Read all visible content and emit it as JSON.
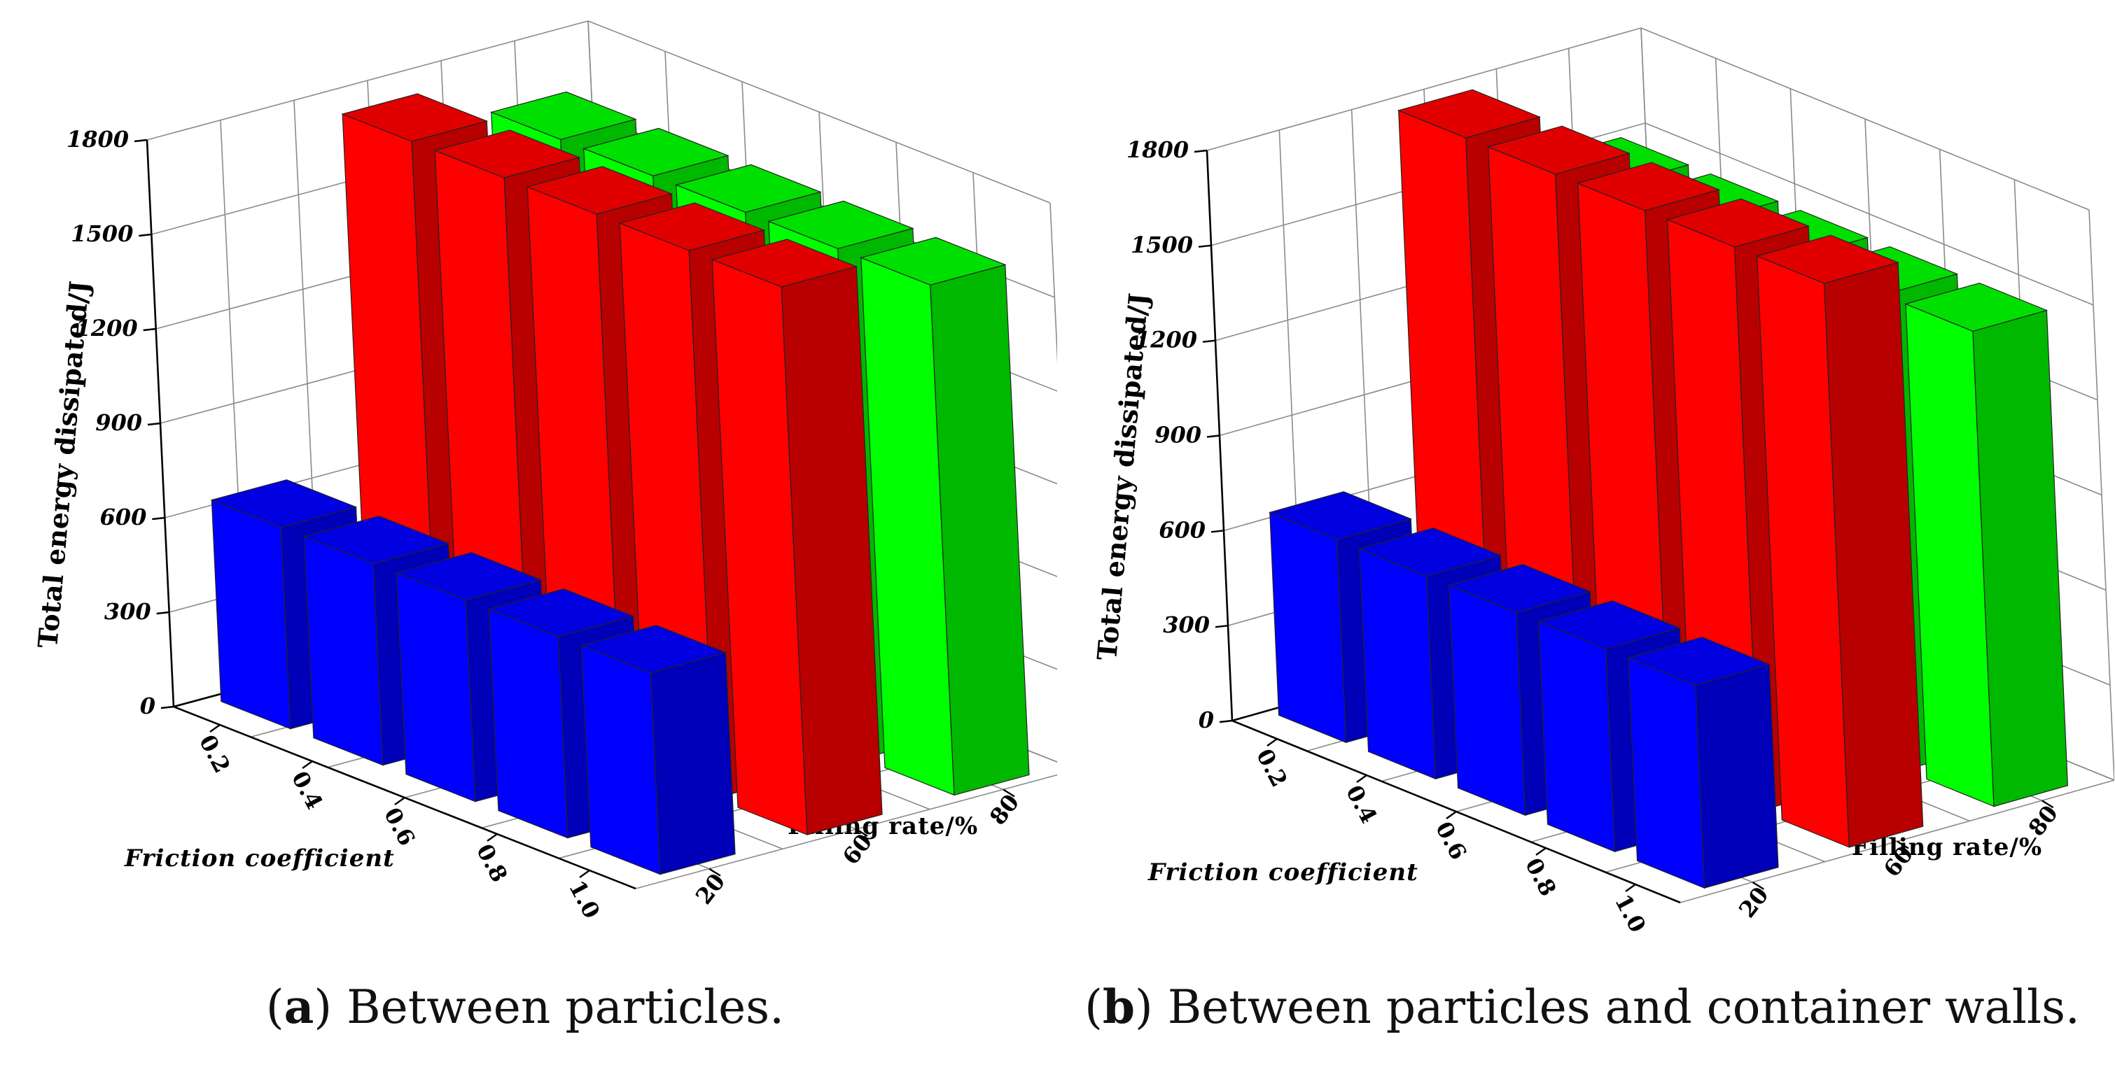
{
  "figure": {
    "panels": [
      {
        "caption_letter": "a",
        "caption_text": "Between particles.",
        "chart_data": {
          "type": "bar",
          "title": "",
          "zlabel": "Total energy dissipated/J",
          "xlabel": "Friction coefficient",
          "ylabel": "Filling rate/%",
          "zlim": [
            0,
            1800
          ],
          "z_ticks": [
            0,
            300,
            600,
            900,
            1200,
            1500,
            1800
          ],
          "friction_ticks": [
            "0.2",
            "0.4",
            "0.6",
            "0.8",
            "1.0"
          ],
          "filling_ticks": [
            "20",
            "60",
            "80"
          ],
          "series": [
            {
              "name": "20",
              "color": "#0000ff",
              "values": [
                640,
                640,
                640,
                640,
                640
              ]
            },
            {
              "name": "60",
              "color": "#ff0000",
              "values": [
                1740,
                1740,
                1740,
                1740,
                1740
              ]
            },
            {
              "name": "80",
              "color": "#00ff00",
              "values": [
                1620,
                1620,
                1620,
                1620,
                1620
              ]
            }
          ]
        }
      },
      {
        "caption_letter": "b",
        "caption_text": "Between particles and container walls.",
        "chart_data": {
          "type": "bar",
          "title": "",
          "zlabel": "Total energy dissipated/J",
          "xlabel": "Friction coefficient",
          "ylabel": "Filling rate/%",
          "zlim": [
            0,
            1800
          ],
          "z_ticks": [
            0,
            300,
            600,
            900,
            1200,
            1500,
            1800
          ],
          "friction_ticks": [
            "0.2",
            "0.4",
            "0.6",
            "0.8",
            "1.0"
          ],
          "filling_ticks": [
            "20",
            "60",
            "80"
          ],
          "series": [
            {
              "name": "20",
              "color": "#0000ff",
              "values": [
                640,
                640,
                640,
                640,
                640
              ]
            },
            {
              "name": "60",
              "color": "#ff0000",
              "values": [
                1780,
                1780,
                1780,
                1780,
                1780
              ]
            },
            {
              "name": "80",
              "color": "#00ff00",
              "values": [
                1500,
                1500,
                1500,
                1500,
                1500
              ]
            }
          ]
        }
      }
    ]
  }
}
